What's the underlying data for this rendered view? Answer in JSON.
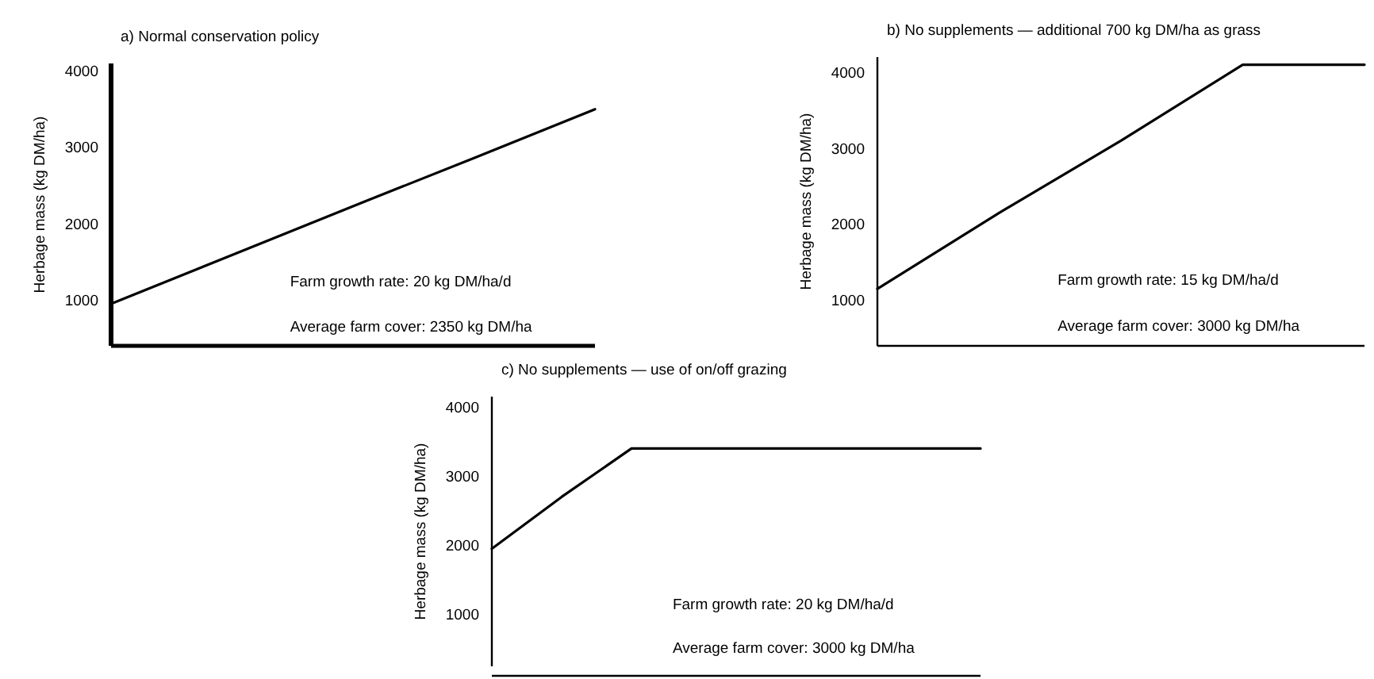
{
  "chart_data": [
    {
      "type": "line",
      "title": "a) Normal conservation policy",
      "ylabel": "Herbage mass (kg DM/ha)",
      "categories": [
        null,
        null,
        null,
        null,
        null
      ],
      "values": [
        950,
        1590,
        2230,
        2860,
        3500
      ],
      "color": "#000000",
      "ylim": [
        400,
        4100
      ],
      "yticks": [
        1000,
        2000,
        3000,
        4000
      ],
      "annotations": [
        "Farm growth rate: 20 kg DM/ha/d",
        "Average farm cover: 2350 kg DM/ha"
      ],
      "tick_labels": "y"
    },
    {
      "type": "line",
      "title": "b) No supplements — additional 700 kg DM/ha as grass",
      "ylabel": "Herbage mass (kg DM/ha)",
      "categories": [
        null,
        null,
        null,
        null,
        null
      ],
      "values": [
        1150,
        2150,
        3100,
        4100,
        4100
      ],
      "color": "#000000",
      "ylim": [
        400,
        4200
      ],
      "yticks": [
        1000,
        2000,
        3000,
        4000
      ],
      "annotations": [
        "Farm growth rate: 15 kg DM/ha/d",
        "Average farm cover: 3000 kg DM/ha"
      ],
      "tick_labels": "y"
    },
    {
      "type": "line",
      "title": "c) No supplements — use of on/off grazing",
      "ylabel": "Herbage mass (kg DM/ha)",
      "categories": [
        null,
        null,
        null,
        null,
        null,
        null,
        null,
        null
      ],
      "values": [
        1950,
        2700,
        3400,
        3400,
        3400,
        3400,
        3400,
        3400
      ],
      "color": "#000000",
      "ylim": [
        250,
        4150
      ],
      "yticks": [
        1000,
        2000,
        3000,
        4000
      ],
      "annotations": [
        "Farm growth rate: 20 kg DM/ha/d",
        "Average farm cover: 3000 kg DM/ha"
      ],
      "tick_labels": "y"
    }
  ]
}
